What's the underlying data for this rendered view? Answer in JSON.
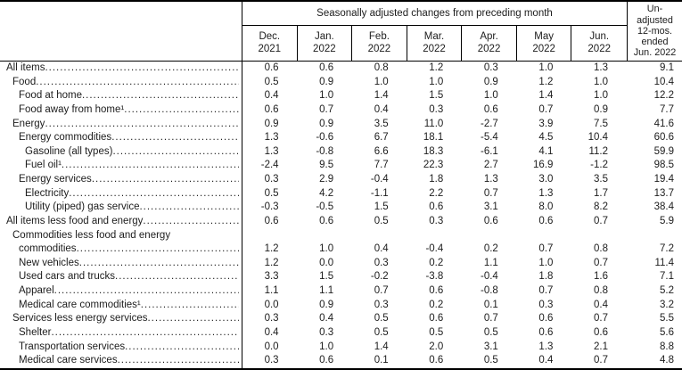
{
  "table": {
    "spanner": "Seasonally adjusted changes from preceding month",
    "unadjusted_lines": [
      "Un-",
      "adjusted",
      "12-mos.",
      "ended",
      "Jun. 2022"
    ],
    "months": [
      {
        "month": "Dec.",
        "year": "2021"
      },
      {
        "month": "Jan.",
        "year": "2022"
      },
      {
        "month": "Feb.",
        "year": "2022"
      },
      {
        "month": "Mar.",
        "year": "2022"
      },
      {
        "month": "Apr.",
        "year": "2022"
      },
      {
        "month": "May",
        "year": "2022"
      },
      {
        "month": "Jun.",
        "year": "2022"
      }
    ],
    "rows": [
      {
        "label": "All items",
        "indent": 0,
        "values": [
          "0.6",
          "0.6",
          "0.8",
          "1.2",
          "0.3",
          "1.0",
          "1.3",
          "9.1"
        ]
      },
      {
        "label": "Food",
        "indent": 1,
        "values": [
          "0.5",
          "0.9",
          "1.0",
          "1.0",
          "0.9",
          "1.2",
          "1.0",
          "10.4"
        ]
      },
      {
        "label": "Food at home",
        "indent": 2,
        "values": [
          "0.4",
          "1.0",
          "1.4",
          "1.5",
          "1.0",
          "1.4",
          "1.0",
          "12.2"
        ]
      },
      {
        "label": "Food away from home¹",
        "indent": 2,
        "values": [
          "0.6",
          "0.7",
          "0.4",
          "0.3",
          "0.6",
          "0.7",
          "0.9",
          "7.7"
        ]
      },
      {
        "label": "Energy",
        "indent": 1,
        "values": [
          "0.9",
          "0.9",
          "3.5",
          "11.0",
          "-2.7",
          "3.9",
          "7.5",
          "41.6"
        ]
      },
      {
        "label": "Energy commodities",
        "indent": 2,
        "values": [
          "1.3",
          "-0.6",
          "6.7",
          "18.1",
          "-5.4",
          "4.5",
          "10.4",
          "60.6"
        ]
      },
      {
        "label": "Gasoline (all types)",
        "indent": 3,
        "values": [
          "1.3",
          "-0.8",
          "6.6",
          "18.3",
          "-6.1",
          "4.1",
          "11.2",
          "59.9"
        ]
      },
      {
        "label": "Fuel oil¹",
        "indent": 3,
        "values": [
          "-2.4",
          "9.5",
          "7.7",
          "22.3",
          "2.7",
          "16.9",
          "-1.2",
          "98.5"
        ]
      },
      {
        "label": "Energy services",
        "indent": 2,
        "values": [
          "0.3",
          "2.9",
          "-0.4",
          "1.8",
          "1.3",
          "3.0",
          "3.5",
          "19.4"
        ]
      },
      {
        "label": "Electricity",
        "indent": 3,
        "values": [
          "0.5",
          "4.2",
          "-1.1",
          "2.2",
          "0.7",
          "1.3",
          "1.7",
          "13.7"
        ]
      },
      {
        "label": "Utility (piped) gas service",
        "indent": 3,
        "values": [
          "-0.3",
          "-0.5",
          "1.5",
          "0.6",
          "3.1",
          "8.0",
          "8.2",
          "38.4"
        ]
      },
      {
        "label": "All items less food and energy",
        "indent": 0,
        "values": [
          "0.6",
          "0.6",
          "0.5",
          "0.3",
          "0.6",
          "0.6",
          "0.7",
          "5.9"
        ]
      },
      {
        "label": "Commodities less food and energy",
        "label2": "commodities",
        "indent": 1,
        "values": [
          "1.2",
          "1.0",
          "0.4",
          "-0.4",
          "0.2",
          "0.7",
          "0.8",
          "7.2"
        ]
      },
      {
        "label": "New vehicles",
        "indent": 2,
        "values": [
          "1.2",
          "0.0",
          "0.3",
          "0.2",
          "1.1",
          "1.0",
          "0.7",
          "11.4"
        ]
      },
      {
        "label": "Used cars and trucks",
        "indent": 2,
        "values": [
          "3.3",
          "1.5",
          "-0.2",
          "-3.8",
          "-0.4",
          "1.8",
          "1.6",
          "7.1"
        ]
      },
      {
        "label": "Apparel",
        "indent": 2,
        "values": [
          "1.1",
          "1.1",
          "0.7",
          "0.6",
          "-0.8",
          "0.7",
          "0.8",
          "5.2"
        ]
      },
      {
        "label": "Medical care commodities¹",
        "indent": 2,
        "values": [
          "0.0",
          "0.9",
          "0.3",
          "0.2",
          "0.1",
          "0.3",
          "0.4",
          "3.2"
        ]
      },
      {
        "label": "Services less energy services",
        "indent": 1,
        "values": [
          "0.3",
          "0.4",
          "0.5",
          "0.6",
          "0.7",
          "0.6",
          "0.7",
          "5.5"
        ]
      },
      {
        "label": "Shelter",
        "indent": 2,
        "values": [
          "0.4",
          "0.3",
          "0.5",
          "0.5",
          "0.5",
          "0.6",
          "0.6",
          "5.6"
        ]
      },
      {
        "label": "Transportation services",
        "indent": 2,
        "values": [
          "0.0",
          "1.0",
          "1.4",
          "2.0",
          "3.1",
          "1.3",
          "2.1",
          "8.8"
        ]
      },
      {
        "label": "Medical care services",
        "indent": 2,
        "values": [
          "0.3",
          "0.6",
          "0.1",
          "0.6",
          "0.5",
          "0.4",
          "0.7",
          "4.8"
        ]
      }
    ]
  }
}
